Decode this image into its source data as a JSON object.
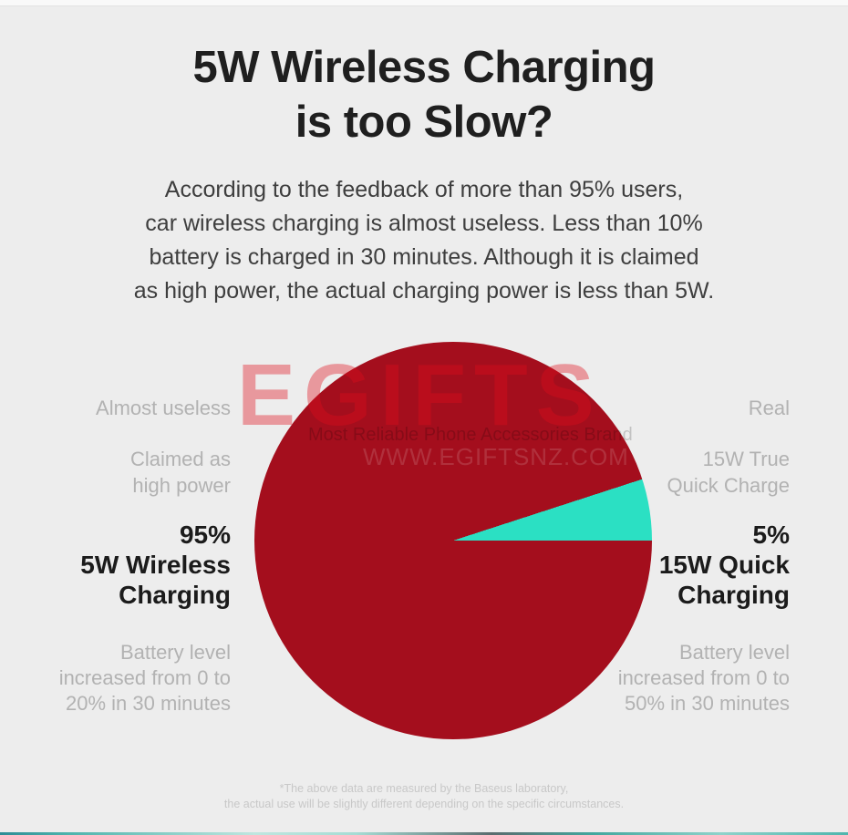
{
  "header": {
    "title_line1": "5W Wireless Charging",
    "title_line2": "is too Slow?",
    "subtitle_lines": [
      "According to the feedback of more than 95% users,",
      "car wireless charging is almost useless. Less than 10%",
      "battery is charged in 30 minutes. Although it is claimed",
      "as high power, the actual charging power is less than 5W."
    ]
  },
  "chart_data": {
    "type": "pie",
    "title": "5W Wireless Charging is too Slow?",
    "start_angle_note": "5% slice ends at the 3 o'clock position, flat edge horizontal",
    "slices": [
      {
        "label": "5W Wireless Charging",
        "pct_label": "95%",
        "value": 95,
        "color": "#A40E1D",
        "tag": "Almost useless",
        "claim": "Claimed as high power",
        "battery_note": "Battery level increased from 0 to 20% in 30 minutes"
      },
      {
        "label": "15W Quick Charging",
        "pct_label": "5%",
        "value": 5,
        "color": "#2BE0C3",
        "tag": "Real",
        "claim": "15W True Quick Charge",
        "battery_note": "Battery level increased from 0 to 50% in 30 minutes"
      }
    ],
    "legend_position": "sides"
  },
  "labels_left": {
    "tag": "Almost useless",
    "claim_line1": "Claimed as",
    "claim_line2": "high power",
    "pct": "95%",
    "name_line1": "5W Wireless",
    "name_line2": "Charging",
    "battery_line1": "Battery level",
    "battery_line2": "increased from 0 to",
    "battery_line3": "20% in 30 minutes"
  },
  "labels_right": {
    "tag": "Real",
    "claim_line1": "15W True",
    "claim_line2": "Quick Charge",
    "pct": "5%",
    "name_line1": "15W Quick",
    "name_line2": "Charging",
    "battery_line1": "Battery level",
    "battery_line2": "increased from 0 to",
    "battery_line3": "50% in 30 minutes"
  },
  "watermark": {
    "brand": "EGIFTS",
    "tagline": "Most Reliable Phone Accessories Brand",
    "url": "WWW.EGIFTSNZ.COM"
  },
  "footer": {
    "line1": "*The above data are measured by the Baseus laboratory,",
    "line2": "the actual use will be slightly different depending on the specific circumstances."
  },
  "colors": {
    "background": "#EDEDED",
    "pie_main": "#A40E1D",
    "pie_slice": "#2BE0C3",
    "title_text": "#1F1F1F",
    "body_text": "#3E3E3E",
    "muted_text": "#B2B2B2",
    "bold_label_text": "#1B1B1B",
    "footer_text": "#C8C8C8",
    "watermark_red": "#DF0E1A"
  }
}
